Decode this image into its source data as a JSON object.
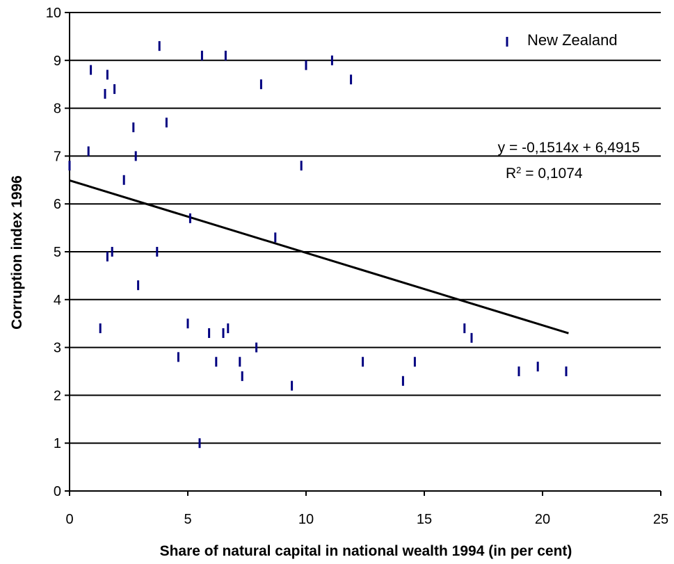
{
  "chart_data": {
    "type": "scatter",
    "title": "",
    "xlabel": "Share of natural capital in national wealth 1994 (in per cent)",
    "ylabel": "Corruption index 1996",
    "xlim": [
      0,
      25
    ],
    "ylim": [
      0,
      10
    ],
    "x_ticks": [
      "0",
      "5",
      "10",
      "15",
      "20",
      "25"
    ],
    "y_ticks": [
      "0",
      "1",
      "2",
      "3",
      "4",
      "5",
      "6",
      "7",
      "8",
      "9",
      "10"
    ],
    "grid": "horizontal",
    "legend": {
      "position": "top-right",
      "entries": [
        "New Zealand"
      ]
    },
    "colors": {
      "points": "#000080",
      "trendline": "#000000",
      "grid": "#000000"
    },
    "series": [
      {
        "name": "New Zealand",
        "points": [
          [
            0.0,
            6.8
          ],
          [
            0.8,
            7.1
          ],
          [
            0.9,
            8.8
          ],
          [
            1.3,
            3.4
          ],
          [
            1.5,
            8.3
          ],
          [
            1.6,
            8.7
          ],
          [
            1.6,
            4.9
          ],
          [
            1.8,
            5.0
          ],
          [
            1.9,
            8.4
          ],
          [
            2.3,
            6.5
          ],
          [
            2.7,
            7.6
          ],
          [
            2.8,
            7.0
          ],
          [
            2.9,
            4.3
          ],
          [
            3.7,
            5.0
          ],
          [
            3.8,
            9.3
          ],
          [
            4.1,
            7.7
          ],
          [
            4.6,
            2.8
          ],
          [
            5.0,
            3.5
          ],
          [
            5.1,
            5.7
          ],
          [
            5.5,
            1.0
          ],
          [
            5.6,
            9.1
          ],
          [
            5.9,
            3.3
          ],
          [
            6.2,
            2.7
          ],
          [
            6.5,
            3.3
          ],
          [
            6.6,
            9.1
          ],
          [
            6.7,
            3.4
          ],
          [
            7.2,
            2.7
          ],
          [
            7.3,
            2.4
          ],
          [
            7.9,
            3.0
          ],
          [
            8.1,
            8.5
          ],
          [
            8.7,
            5.3
          ],
          [
            9.4,
            2.2
          ],
          [
            9.8,
            6.8
          ],
          [
            10.0,
            8.9
          ],
          [
            11.1,
            9.0
          ],
          [
            11.9,
            8.6
          ],
          [
            12.4,
            2.7
          ],
          [
            14.1,
            2.3
          ],
          [
            14.6,
            2.7
          ],
          [
            16.7,
            3.4
          ],
          [
            17.0,
            3.2
          ],
          [
            19.0,
            2.5
          ],
          [
            19.8,
            2.6
          ],
          [
            21.0,
            2.5
          ]
        ]
      }
    ],
    "trendline": {
      "slope": -0.1514,
      "intercept": 6.4915,
      "x_range": [
        0,
        21.1
      ]
    },
    "annotations": {
      "equation": "y = -0,1514x + 6,4915",
      "r2_prefix": "R",
      "r2_sup": "2",
      "r2_suffix": " = 0,1074"
    }
  }
}
